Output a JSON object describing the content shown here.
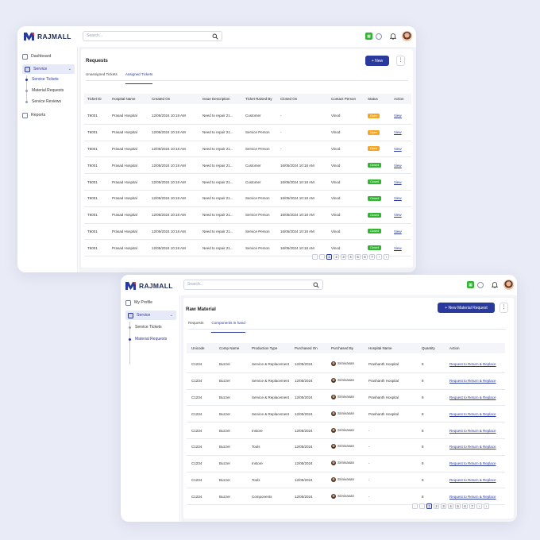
{
  "brand": "RAJMALL",
  "search_placeholder": "Search...",
  "window1": {
    "sidebar": [
      {
        "label": "Dashboard",
        "icon": "dashboard-icon"
      },
      {
        "label": "Service",
        "icon": "service-icon",
        "active": true
      },
      {
        "label": "Reports",
        "icon": "reports-icon"
      }
    ],
    "service_children": [
      "Service Tickets",
      "Material Requests",
      "Service Reviews"
    ],
    "title": "Requests",
    "new_button": "+ New",
    "tabs": [
      "Unassigned Tickets",
      "Assigned Tickets"
    ],
    "columns": [
      "Ticket ID",
      "Hospital Name",
      "Created On",
      "Issue Description",
      "Ticket Raised By",
      "Closed On",
      "Contact Person",
      "Status",
      "Action"
    ],
    "rows": [
      [
        "T6001",
        "Prasad Hospital",
        "12/05/2024 10:18 AM",
        "Need to repair 21...",
        "Customer",
        "-",
        "Vinod",
        "Open",
        "View"
      ],
      [
        "T6001",
        "Prasad Hospital",
        "12/05/2024 10:18 AM",
        "Need to repair 21...",
        "Service Person",
        "-",
        "Vinod",
        "Open",
        "View"
      ],
      [
        "T6001",
        "Prasad Hospital",
        "12/05/2024 10:18 AM",
        "Need to repair 21...",
        "Service Person",
        "-",
        "Vinod",
        "Open",
        "View"
      ],
      [
        "T6001",
        "Prasad Hospital",
        "12/05/2024 10:18 AM",
        "Need to repair 21...",
        "Customer",
        "16/05/2024 10:18 AM",
        "Vinod",
        "Closed",
        "View"
      ],
      [
        "T6001",
        "Prasad Hospital",
        "12/05/2024 10:18 AM",
        "Need to repair 21...",
        "Customer",
        "16/05/2024 10:18 AM",
        "Vinod",
        "Closed",
        "View"
      ],
      [
        "T6001",
        "Prasad Hospital",
        "12/05/2024 10:18 AM",
        "Need to repair 21...",
        "Service Person",
        "16/05/2024 10:18 AM",
        "Vinod",
        "Closed",
        "View"
      ],
      [
        "T6001",
        "Prasad Hospital",
        "12/05/2024 10:18 AM",
        "Need to repair 21...",
        "Service Person",
        "16/05/2024 10:18 AM",
        "Vinod",
        "Closed",
        "View"
      ],
      [
        "T6001",
        "Prasad Hospital",
        "12/05/2024 10:18 AM",
        "Need to repair 21...",
        "Service Person",
        "16/05/2024 10:18 AM",
        "Vinod",
        "Closed",
        "View"
      ],
      [
        "T6001",
        "Prasad Hospital",
        "12/05/2024 10:18 AM",
        "Need to repair 21...",
        "Service Person",
        "16/05/2024 10:18 AM",
        "Vinod",
        "Closed",
        "View"
      ]
    ],
    "pages": [
      "‹",
      "‹",
      "1",
      "2",
      "3",
      "4",
      "5",
      "6",
      "7",
      "›",
      "›"
    ],
    "active_page": "1"
  },
  "window2": {
    "sidebar": [
      {
        "label": "My Profile",
        "icon": "profile-icon"
      },
      {
        "label": "Service",
        "icon": "service-icon",
        "active": true
      }
    ],
    "service_children": [
      "Service Tickets",
      "Material Requests"
    ],
    "title": "Raw Material",
    "new_button": "+ New Material Request",
    "tabs": [
      "Requests",
      "Components in hand"
    ],
    "columns": [
      "Unicode",
      "Comp Name",
      "Production Type",
      "Purchased On",
      "Purchased By",
      "Hospital Name",
      "Quantity",
      "Action"
    ],
    "rows": [
      [
        "C1234",
        "Buzzer",
        "Service & Replacement",
        "12/05/2024",
        "Srinivasan",
        "Prashanth Hospital",
        "8",
        "Request to Return & Replace"
      ],
      [
        "C1234",
        "Buzzer",
        "Service & Replacement",
        "12/05/2024",
        "Srinivasan",
        "Prashanth Hospital",
        "8",
        "Request to Return & Replace"
      ],
      [
        "C1234",
        "Buzzer",
        "Service & Replacement",
        "12/05/2024",
        "Srinivasan",
        "Prashanth Hospital",
        "8",
        "Request to Return & Replace"
      ],
      [
        "C1234",
        "Buzzer",
        "Service & Replacement",
        "12/05/2024",
        "Srinivasan",
        "Prashanth Hospital",
        "8",
        "Request to Return & Replace"
      ],
      [
        "C1234",
        "Buzzer",
        "Instore",
        "12/05/2024",
        "Srinivasan",
        "-",
        "8",
        "Request to Return & Replace"
      ],
      [
        "C1234",
        "Buzzer",
        "Tools",
        "12/05/2024",
        "Srinivasan",
        "-",
        "8",
        "Request to Return & Replace"
      ],
      [
        "C1234",
        "Buzzer",
        "Instore",
        "12/05/2024",
        "Srinivasan",
        "-",
        "8",
        "Request to Return & Replace"
      ],
      [
        "C1234",
        "Buzzer",
        "Tools",
        "12/05/2024",
        "Srinivasan",
        "-",
        "8",
        "Request to Return & Replace"
      ],
      [
        "C1234",
        "Buzzer",
        "Components",
        "12/05/2024",
        "Srinivasan",
        "-",
        "8",
        "Request to Return & Replace"
      ]
    ],
    "pages": [
      "‹",
      "‹",
      "1",
      "2",
      "3",
      "4",
      "5",
      "6",
      "7",
      "›",
      "›"
    ],
    "active_page": "1"
  },
  "colors": {
    "accent": "#2a3a9c",
    "open": "#f5a623",
    "closed": "#2fb52f"
  }
}
